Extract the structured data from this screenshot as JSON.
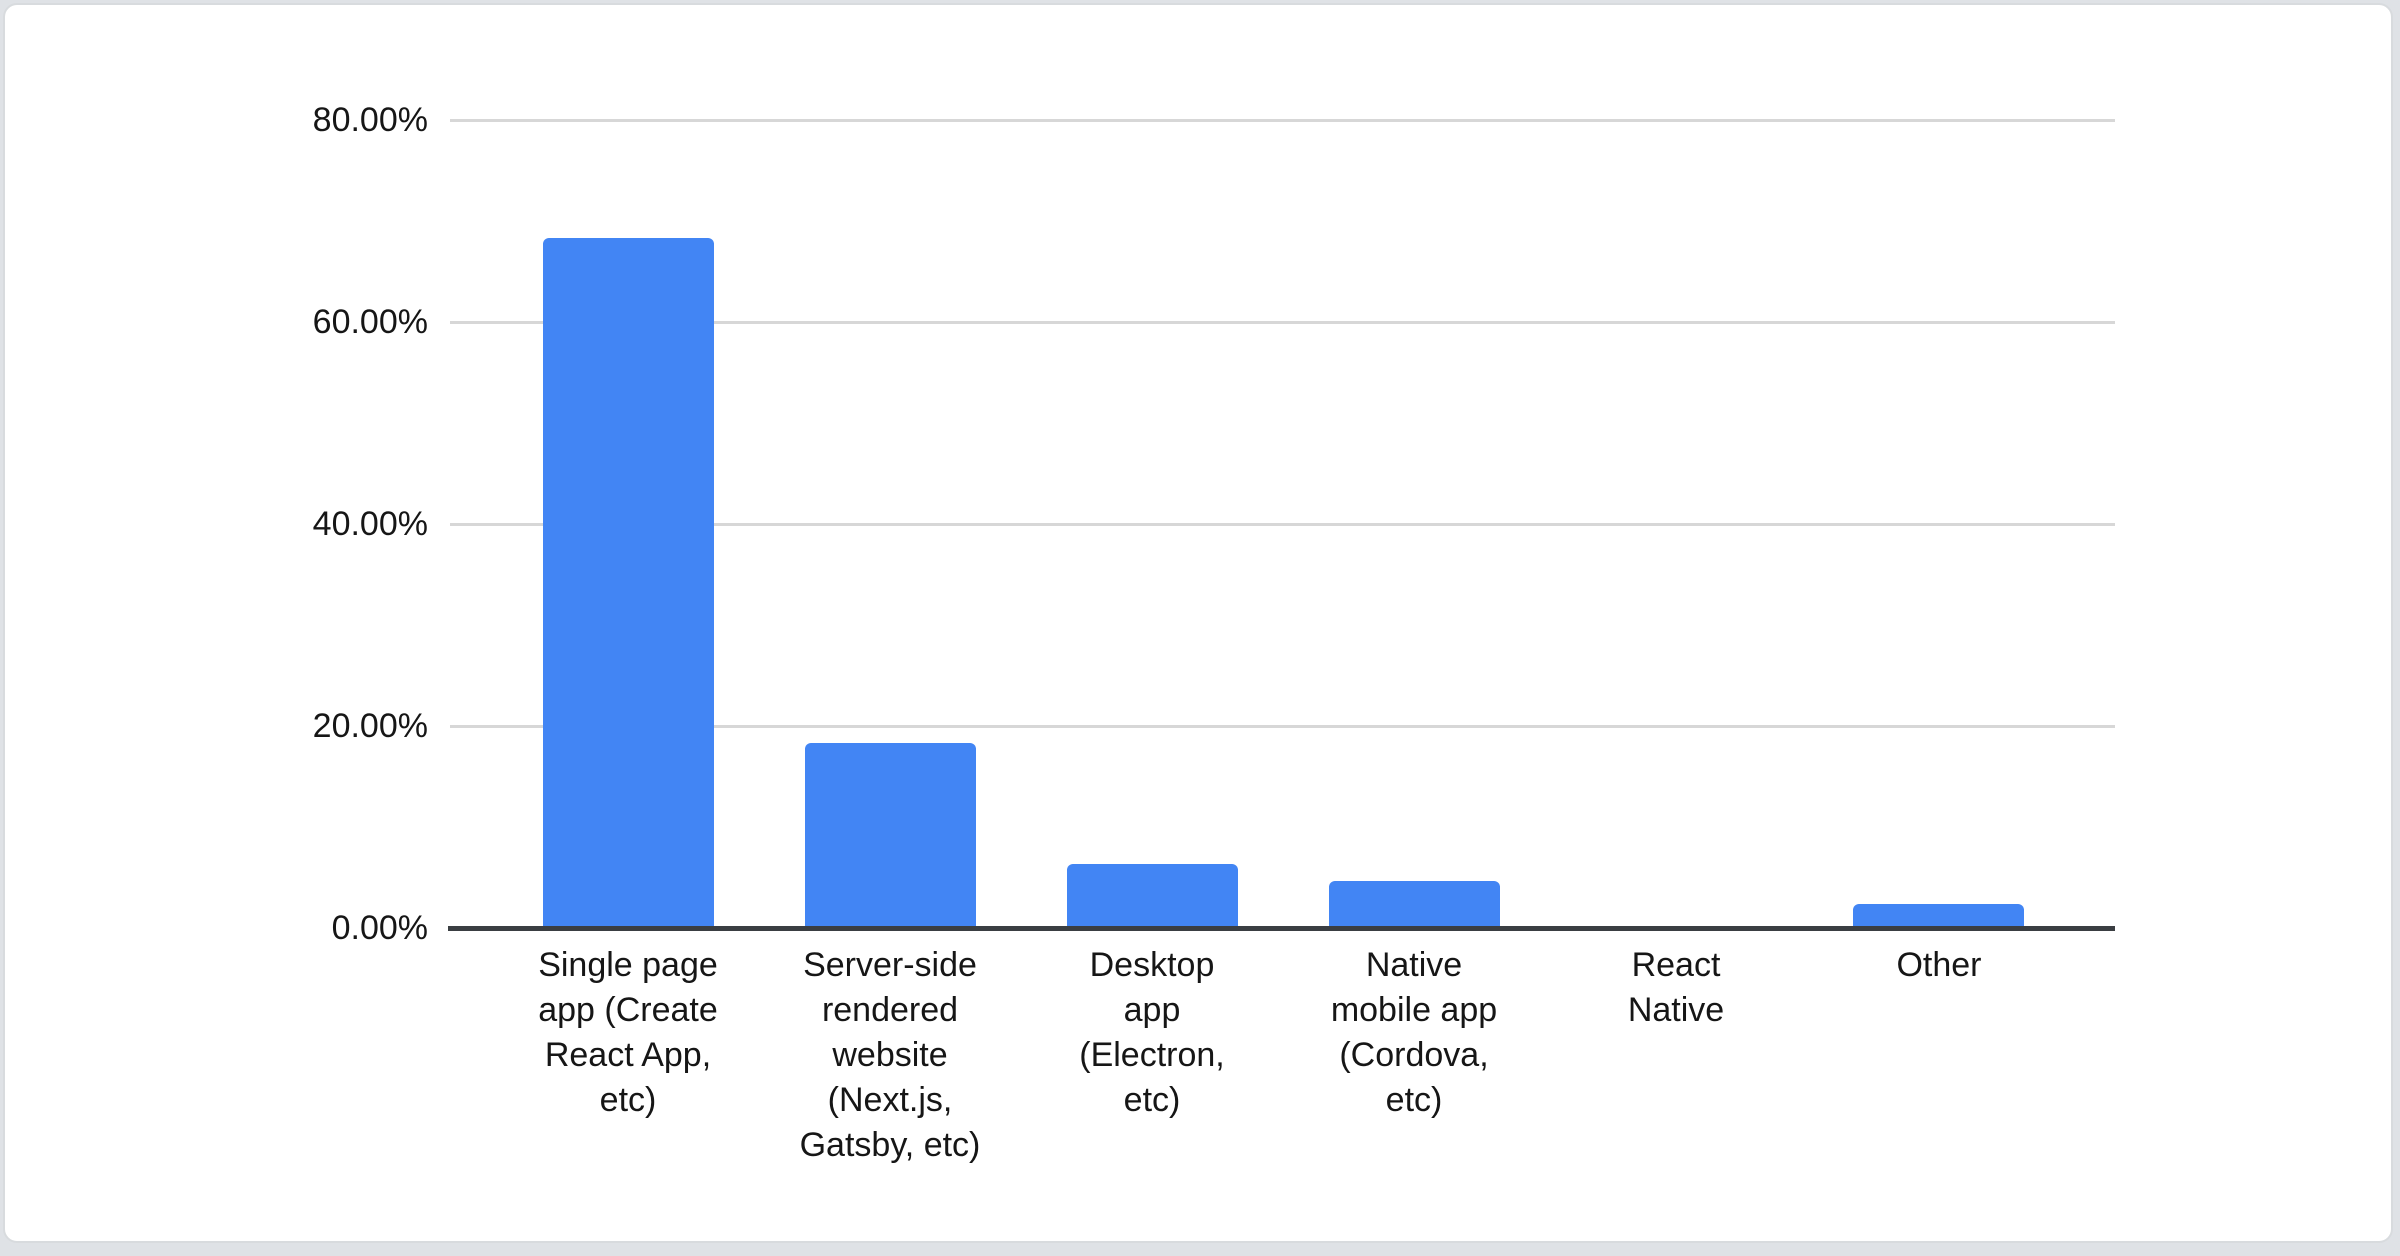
{
  "card": {
    "background": "#ffffff",
    "border_color": "#d8dbde",
    "page_background": "#dfe2e6"
  },
  "chart_data": {
    "type": "bar",
    "title": "",
    "xlabel": "",
    "ylabel": "",
    "categories": [
      "Single page\napp (Create\nReact App,\netc)",
      "Server-side\nrendered\nwebsite\n(Next.js,\nGatsby, etc)",
      "Desktop\napp\n(Electron,\netc)",
      "Native\nmobile app\n(Cordova,\netc)",
      "React\nNative",
      "Other"
    ],
    "values": [
      68.3,
      18.3,
      6.3,
      4.7,
      0,
      2.4
    ],
    "ytick_labels": [
      "80.00%",
      "60.00%",
      "40.00%",
      "20.00%",
      "0.00%"
    ],
    "ytick_values": [
      80,
      60,
      40,
      20,
      0
    ],
    "ylim": [
      0,
      80
    ],
    "grid": "on",
    "legend": "none",
    "colors": {
      "bar": "#4285f4",
      "gridline": "#d7d7d7",
      "axis": "#3a3e42",
      "text": "#161616"
    }
  }
}
